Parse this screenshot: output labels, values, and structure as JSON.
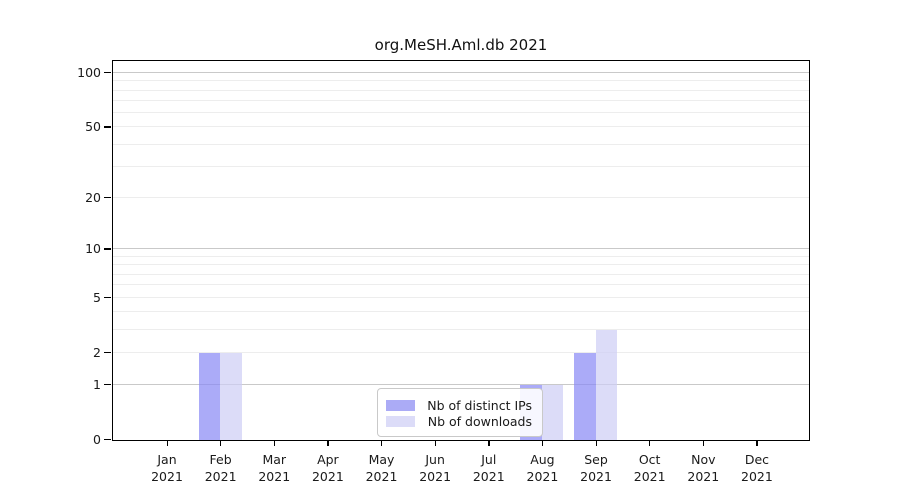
{
  "chart_data": {
    "type": "bar",
    "title": "org.MeSH.Aml.db 2021",
    "categories": [
      "Jan 2021",
      "Feb 2021",
      "Mar 2021",
      "Apr 2021",
      "May 2021",
      "Jun 2021",
      "Jul 2021",
      "Aug 2021",
      "Sep 2021",
      "Oct 2021",
      "Nov 2021",
      "Dec 2021"
    ],
    "series": [
      {
        "name": "Nb of distinct IPs",
        "color": "#ababf6",
        "fill": "rgba(135,135,245,0.7)",
        "values": [
          0,
          2,
          0,
          0,
          0,
          0,
          0,
          1,
          2,
          0,
          0,
          0
        ]
      },
      {
        "name": "Nb of downloads",
        "color": "#dcdcf8",
        "fill": "rgba(205,205,245,0.7)",
        "values": [
          0,
          2,
          0,
          0,
          0,
          0,
          0,
          1,
          3,
          0,
          0,
          0
        ]
      }
    ],
    "xlabel": "",
    "ylabel": "",
    "yscale": "log1p",
    "ylim": [
      0,
      116
    ],
    "yticks": [
      0,
      1,
      2,
      5,
      10,
      20,
      50,
      100
    ],
    "grid": {
      "major_values": [
        1,
        10,
        100
      ],
      "minor_values": [
        2,
        3,
        4,
        5,
        6,
        7,
        8,
        9,
        20,
        30,
        40,
        50,
        60,
        70,
        80,
        90
      ],
      "major_color": "#c9c9c9",
      "minor_color": "#ededed"
    },
    "legend": {
      "position": "lower center",
      "labels": [
        "Nb of distinct IPs",
        "Nb of downloads"
      ]
    }
  },
  "style": {
    "axis_color": "#000000",
    "text_color": "#1a1a1a",
    "background": "#ffffff"
  }
}
